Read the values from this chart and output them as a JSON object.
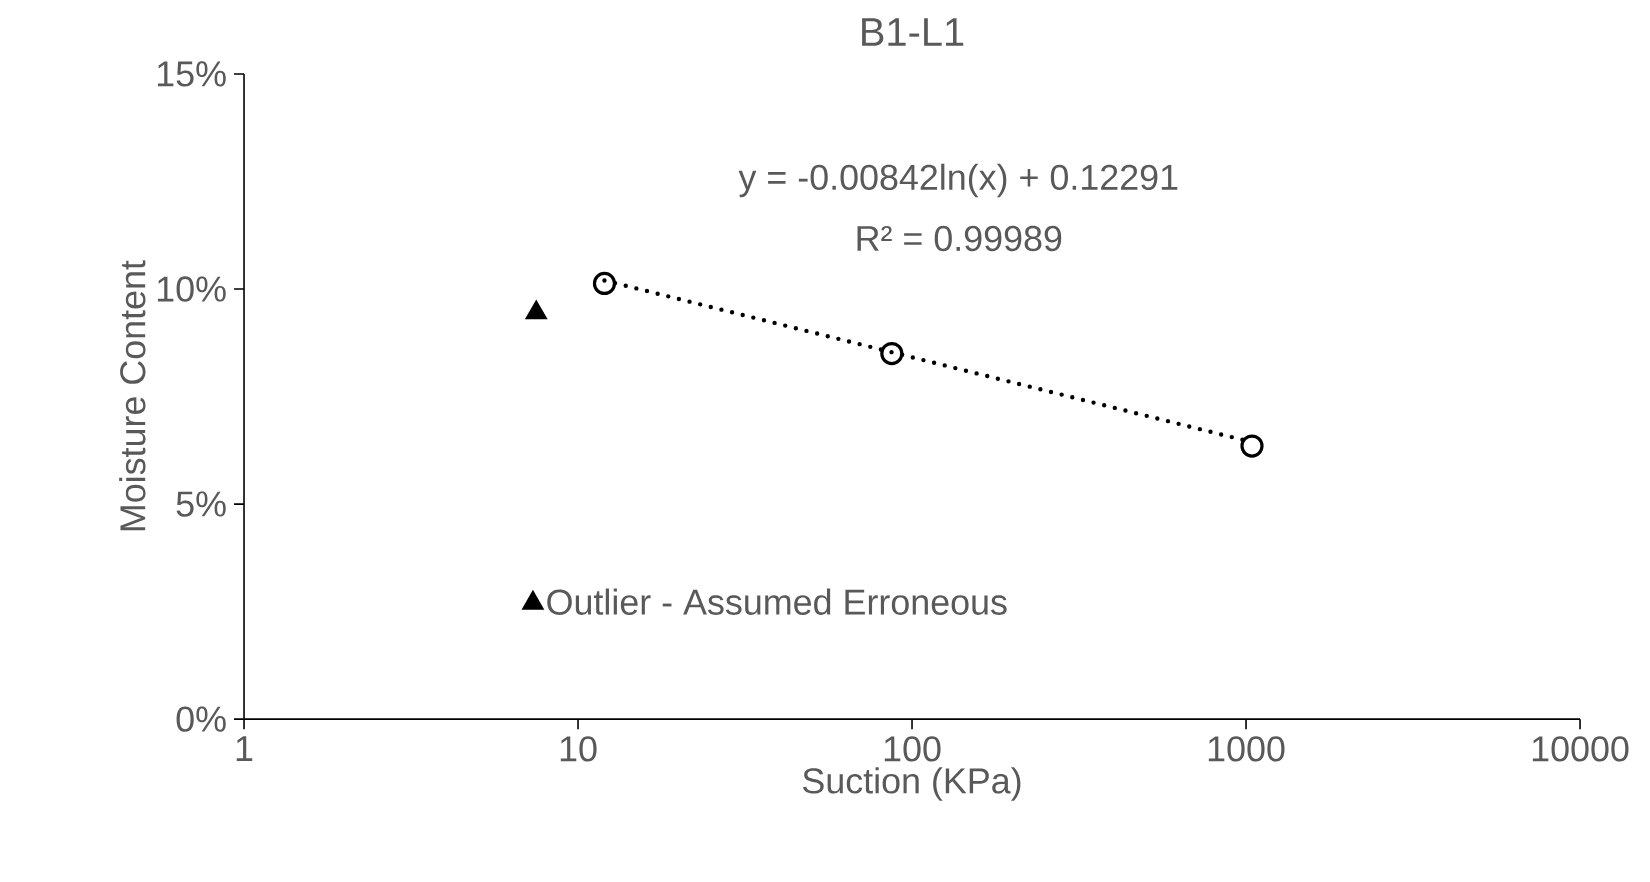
{
  "chart_data": {
    "type": "scatter",
    "title": "B1-L1",
    "xlabel": "Suction (KPa)",
    "ylabel": "Moisture Content",
    "log": "x",
    "xlim": [
      1,
      10000
    ],
    "xticks": [
      1,
      10,
      100,
      1000,
      10000
    ],
    "ylim": [
      0,
      15
    ],
    "yticks": [
      {
        "value": 0,
        "label": "0%"
      },
      {
        "value": 5,
        "label": "5%"
      },
      {
        "value": 10,
        "label": "10%"
      },
      {
        "value": 15,
        "label": "15%"
      }
    ],
    "grid": false,
    "legend": "bottom left",
    "annotations": [
      "y = -0.00842ln(x) + 0.12291",
      "R² = 0.99989"
    ],
    "series": [
      {
        "color": "#000000",
        "marker": "circle",
        "x": [
          12,
          87,
          1042
        ],
        "values": [
          10.13,
          8.5,
          6.35
        ]
      },
      {
        "type": "line",
        "color": "#000000",
        "marker": "none",
        "line_style": "dotted",
        "x": [
          12,
          1042
        ],
        "values": [
          10.2,
          6.44
        ]
      },
      {
        "name": "Outlier - Assumed Erroneous",
        "color": "#000000",
        "marker": "triangle",
        "x": [
          7.5
        ],
        "values": [
          9.45
        ]
      }
    ]
  }
}
